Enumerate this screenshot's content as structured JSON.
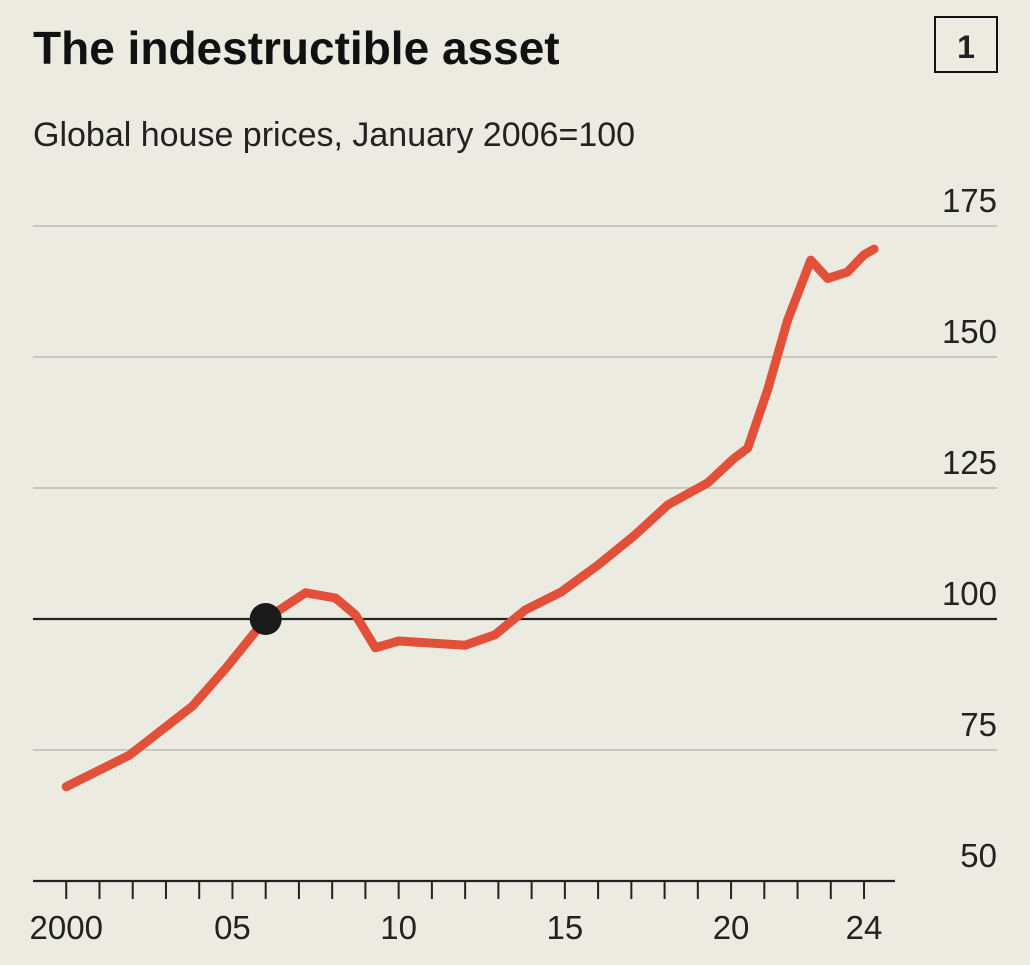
{
  "chart_data": {
    "type": "line",
    "title": "The indestructible asset",
    "subtitle": "Global house prices, January 2006=100",
    "badge": "1",
    "x": [
      2000,
      2001.9,
      2003.8,
      2004.8,
      2006,
      2007.2,
      2008.1,
      2008.7,
      2009.3,
      2010,
      2011,
      2012,
      2012.9,
      2013.8,
      2014.9,
      2016,
      2017.1,
      2018.1,
      2019.3,
      2020.1,
      2020.5,
      2021.1,
      2021.7,
      2022.4,
      2022.9,
      2023.5,
      2024,
      2024.3
    ],
    "series": [
      {
        "name": "Global house prices",
        "color": "#e3503a",
        "values": [
          68,
          74,
          83.4,
          90.6,
          100,
          105,
          104,
          100.8,
          94.5,
          95.8,
          95.4,
          95,
          97,
          101.7,
          105.2,
          110.3,
          116,
          121.8,
          126,
          130.7,
          132.6,
          143.7,
          157,
          168.5,
          165,
          166.2,
          169.5,
          170.6
        ]
      }
    ],
    "marker": {
      "x": 2006,
      "y": 100
    },
    "reference_line": 100,
    "xlim": [
      1999,
      2028
    ],
    "ylim": [
      50,
      175
    ],
    "xticks": [
      2000,
      {
        "value": 2005,
        "label": "05"
      },
      {
        "value": 2010,
        "label": "10"
      },
      {
        "value": 2015,
        "label": "15"
      },
      {
        "value": 2020,
        "label": "20"
      },
      {
        "value": 2024,
        "label": "24"
      }
    ],
    "xminorticks": [
      2001,
      2002,
      2003,
      2004,
      2006,
      2007,
      2008,
      2009,
      2011,
      2012,
      2013,
      2014,
      2016,
      2017,
      2018,
      2019,
      2021,
      2022,
      2023
    ],
    "yticks": [
      50,
      75,
      100,
      125,
      150,
      175
    ],
    "grid": true
  }
}
